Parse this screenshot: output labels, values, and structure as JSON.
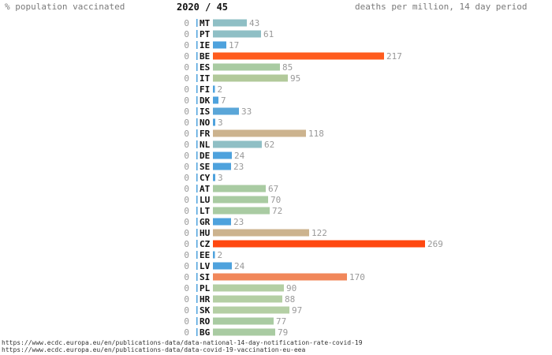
{
  "header": {
    "left_label": "% population vaccinated",
    "center_label": "2020 / 45",
    "right_label": "deaths per million, 14 day period"
  },
  "chart_data": {
    "type": "bar",
    "orientation": "horizontal",
    "categories": [
      "MT",
      "PT",
      "IE",
      "BE",
      "ES",
      "IT",
      "FI",
      "DK",
      "IS",
      "NO",
      "FR",
      "NL",
      "DE",
      "SE",
      "CY",
      "AT",
      "LU",
      "LT",
      "GR",
      "HU",
      "CZ",
      "EE",
      "LV",
      "SI",
      "PL",
      "HR",
      "SK",
      "RO",
      "BG"
    ],
    "series": [
      {
        "values": [
          43,
          61,
          17,
          217,
          85,
          95,
          2,
          7,
          33,
          3,
          118,
          62,
          24,
          23,
          3,
          67,
          70,
          72,
          23,
          122,
          269,
          2,
          24,
          170,
          90,
          88,
          97,
          77,
          79
        ]
      },
      {
        "values": [
          0,
          0,
          0,
          0,
          0,
          0,
          0,
          0,
          0,
          0,
          0,
          0,
          0,
          0,
          0,
          0,
          0,
          0,
          0,
          0,
          0,
          0,
          0,
          0,
          0,
          0,
          0,
          0,
          0
        ]
      }
    ],
    "bar_colors": [
      "#8fbfc5",
      "#8fbfc5",
      "#4ea2dd",
      "#ff5c1e",
      "#a9cba2",
      "#b2c99a",
      "#4ea2dd",
      "#4ea2dd",
      "#5aa6d8",
      "#4ea2dd",
      "#ccb38e",
      "#8fbfc5",
      "#4ea2dd",
      "#4ea2dd",
      "#4ea2dd",
      "#a9cba2",
      "#a9cba2",
      "#a9cba2",
      "#4ea2dd",
      "#ccb38e",
      "#ff4810",
      "#4ea2dd",
      "#4ea2dd",
      "#f1875a",
      "#b4cfa4",
      "#b4cfa4",
      "#b4cfa4",
      "#a9cba2",
      "#a9cba2"
    ],
    "label_color": "#999999",
    "category_color": "#111111",
    "left_tick_color": "#4ea2dd"
  },
  "sources": [
    "https://www.ecdc.europa.eu/en/publications-data/data-national-14-day-notification-rate-covid-19",
    "https://www.ecdc.europa.eu/en/publications-data/data-covid-19-vaccination-eu-eea"
  ]
}
